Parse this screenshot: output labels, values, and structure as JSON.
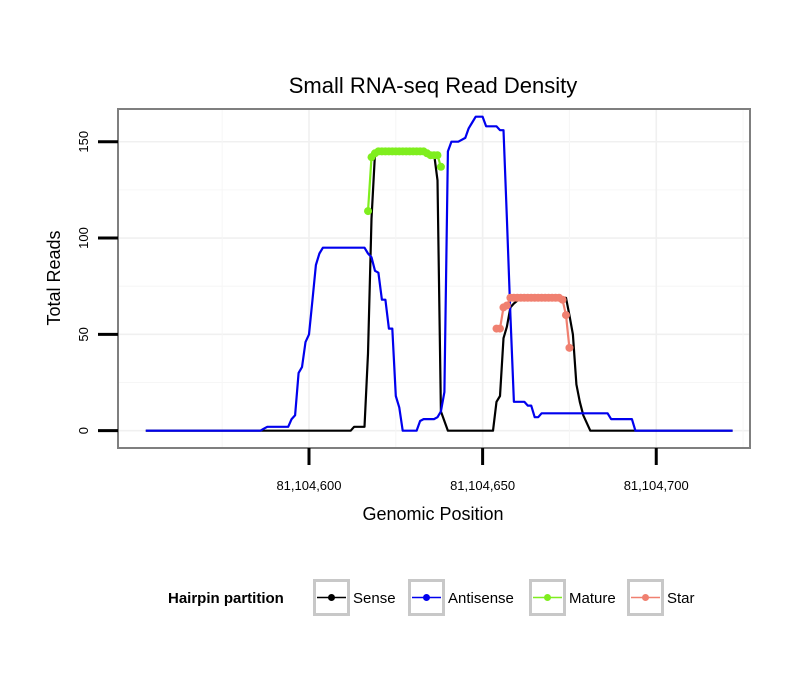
{
  "chart_data": {
    "type": "line",
    "title": "Small RNA-seq Read Density",
    "xlabel": "Genomic Position",
    "ylabel": "Total Reads",
    "xlim": [
      81104545,
      81104727
    ],
    "ylim": [
      -9,
      167
    ],
    "x_ticks": [
      81104600,
      81104650,
      81104700
    ],
    "x_tick_labels": [
      "81,104,600",
      "81,104,650",
      "81,104,700"
    ],
    "y_ticks": [
      0,
      50,
      100,
      150
    ],
    "y_tick_labels": [
      "0",
      "50",
      "100",
      "150"
    ],
    "grid": true,
    "legend": {
      "title": "Hairpin partition",
      "position": "bottom",
      "entries": [
        "Sense",
        "Antisense",
        "Mature",
        "Star"
      ]
    },
    "series": [
      {
        "name": "Sense",
        "color": "#000000",
        "points": [
          [
            81104553,
            0
          ],
          [
            81104612,
            0
          ],
          [
            81104613,
            2
          ],
          [
            81104616,
            2
          ],
          [
            81104617,
            40
          ],
          [
            81104618,
            110
          ],
          [
            81104619,
            144
          ],
          [
            81104636,
            144
          ],
          [
            81104637,
            130
          ],
          [
            81104638,
            10
          ],
          [
            81104640,
            0
          ],
          [
            81104653,
            0
          ],
          [
            81104654,
            15
          ],
          [
            81104655,
            18
          ],
          [
            81104656,
            48
          ],
          [
            81104657,
            54
          ],
          [
            81104658,
            64
          ],
          [
            81104659,
            66
          ],
          [
            81104661,
            69
          ],
          [
            81104674,
            69
          ],
          [
            81104675,
            60
          ],
          [
            81104676,
            50
          ],
          [
            81104677,
            24
          ],
          [
            81104678,
            15
          ],
          [
            81104679,
            8
          ],
          [
            81104681,
            0
          ],
          [
            81104712,
            0
          ],
          [
            81104722,
            0
          ]
        ]
      },
      {
        "name": "Antisense",
        "color": "#0000ee",
        "points": [
          [
            81104553,
            0
          ],
          [
            81104586,
            0
          ],
          [
            81104587,
            1
          ],
          [
            81104588,
            2
          ],
          [
            81104594,
            2
          ],
          [
            81104595,
            6
          ],
          [
            81104596,
            8
          ],
          [
            81104597,
            30
          ],
          [
            81104598,
            33
          ],
          [
            81104599,
            46
          ],
          [
            81104600,
            50
          ],
          [
            81104601,
            68
          ],
          [
            81104602,
            86
          ],
          [
            81104603,
            92
          ],
          [
            81104604,
            95
          ],
          [
            81104616,
            95
          ],
          [
            81104617,
            92
          ],
          [
            81104618,
            90
          ],
          [
            81104619,
            83
          ],
          [
            81104620,
            82
          ],
          [
            81104621,
            68
          ],
          [
            81104622,
            68
          ],
          [
            81104623,
            53
          ],
          [
            81104624,
            53
          ],
          [
            81104625,
            18
          ],
          [
            81104626,
            12
          ],
          [
            81104627,
            0
          ],
          [
            81104631,
            0
          ],
          [
            81104632,
            5
          ],
          [
            81104633,
            6
          ],
          [
            81104636,
            6
          ],
          [
            81104637,
            7
          ],
          [
            81104638,
            10
          ],
          [
            81104639,
            20
          ],
          [
            81104640,
            145
          ],
          [
            81104641,
            150
          ],
          [
            81104643,
            150
          ],
          [
            81104645,
            152
          ],
          [
            81104646,
            157
          ],
          [
            81104647,
            160
          ],
          [
            81104648,
            163
          ],
          [
            81104650,
            163
          ],
          [
            81104651,
            158
          ],
          [
            81104654,
            158
          ],
          [
            81104655,
            156
          ],
          [
            81104656,
            156
          ],
          [
            81104657,
            110
          ],
          [
            81104658,
            60
          ],
          [
            81104659,
            15
          ],
          [
            81104662,
            15
          ],
          [
            81104663,
            13
          ],
          [
            81104664,
            13
          ],
          [
            81104665,
            7
          ],
          [
            81104666,
            7
          ],
          [
            81104667,
            9
          ],
          [
            81104686,
            9
          ],
          [
            81104687,
            6
          ],
          [
            81104693,
            6
          ],
          [
            81104694,
            0
          ],
          [
            81104722,
            0
          ]
        ]
      },
      {
        "name": "Mature",
        "color": "#7fee1e",
        "points": [
          [
            81104617,
            114
          ],
          [
            81104618,
            142
          ],
          [
            81104619,
            144
          ],
          [
            81104620,
            145
          ],
          [
            81104621,
            145
          ],
          [
            81104622,
            145
          ],
          [
            81104623,
            145
          ],
          [
            81104624,
            145
          ],
          [
            81104625,
            145
          ],
          [
            81104626,
            145
          ],
          [
            81104627,
            145
          ],
          [
            81104628,
            145
          ],
          [
            81104629,
            145
          ],
          [
            81104630,
            145
          ],
          [
            81104631,
            145
          ],
          [
            81104632,
            145
          ],
          [
            81104633,
            145
          ],
          [
            81104634,
            144
          ],
          [
            81104635,
            143
          ],
          [
            81104636,
            143
          ],
          [
            81104637,
            143
          ],
          [
            81104638,
            137
          ]
        ]
      },
      {
        "name": "Star",
        "color": "#f08070",
        "points": [
          [
            81104654,
            53
          ],
          [
            81104655,
            53
          ],
          [
            81104656,
            64
          ],
          [
            81104657,
            65
          ],
          [
            81104658,
            69
          ],
          [
            81104659,
            69
          ],
          [
            81104660,
            69
          ],
          [
            81104661,
            69
          ],
          [
            81104662,
            69
          ],
          [
            81104663,
            69
          ],
          [
            81104664,
            69
          ],
          [
            81104665,
            69
          ],
          [
            81104666,
            69
          ],
          [
            81104667,
            69
          ],
          [
            81104668,
            69
          ],
          [
            81104669,
            69
          ],
          [
            81104670,
            69
          ],
          [
            81104671,
            69
          ],
          [
            81104672,
            69
          ],
          [
            81104673,
            68
          ],
          [
            81104674,
            60
          ],
          [
            81104675,
            43
          ]
        ]
      }
    ]
  }
}
